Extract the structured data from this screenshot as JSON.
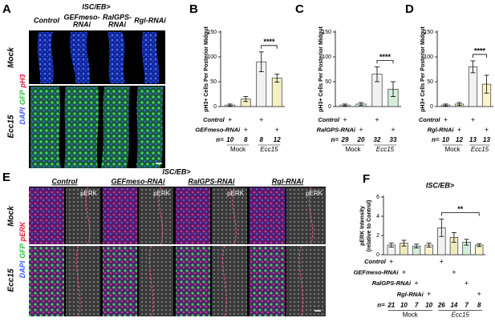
{
  "panel_a": {
    "label": "A",
    "title": "ISC/EB>",
    "columns": [
      [
        "Control"
      ],
      [
        "GEFmeso-",
        "RNAi"
      ],
      [
        "RalGPS-",
        "RNAi"
      ],
      [
        "Rgl-RNAi"
      ]
    ],
    "rows": [
      "Mock",
      "Ecc15"
    ],
    "stains": [
      "DAPI",
      "GFP",
      "pH3"
    ]
  },
  "panel_e": {
    "label": "E",
    "title": "ISC/EB>",
    "columns": [
      {
        "name": "Control",
        "channel": "pERK"
      },
      {
        "name": "GEFmeso-RNAi",
        "channel": "pERK"
      },
      {
        "name": "RalGPS-RNAi",
        "channel": "pERK"
      },
      {
        "name": "Rgl-RNAi",
        "channel": "pERK"
      }
    ],
    "rows": [
      "Mock",
      "Ecc15"
    ],
    "stains": [
      "DAPI",
      "GFP",
      "pERK"
    ]
  },
  "chart_data": [
    {
      "type": "bar",
      "panel": "B",
      "ylabel": [
        "pH3+ Cells Per Posterior Midgut"
      ],
      "ylim": [
        0,
        150
      ],
      "yticks": [
        0,
        50,
        100,
        150
      ],
      "values": [
        3,
        15,
        90,
        57
      ],
      "errors": [
        2,
        5,
        20,
        8
      ],
      "colors": [
        "#f2f2f2",
        "#f4f0c4",
        "#f2f2f2",
        "#f4f0c4"
      ],
      "significance": "****",
      "rows": [
        {
          "label": "Control",
          "marks": [
            "+",
            null,
            "+",
            null
          ]
        },
        {
          "label": "GEFmeso-RNAi",
          "marks": [
            null,
            "+",
            null,
            "+"
          ]
        }
      ],
      "n_label": "n=",
      "n": [
        10,
        8,
        8,
        12
      ],
      "groups": [
        "Mock",
        "Ecc15"
      ]
    },
    {
      "type": "bar",
      "panel": "C",
      "ylabel": [
        "pH3+ Cells Per Posterior Midgut"
      ],
      "ylim": [
        0,
        150
      ],
      "yticks": [
        0,
        50,
        100,
        150
      ],
      "values": [
        3,
        5,
        65,
        35
      ],
      "errors": [
        2,
        3,
        15,
        15
      ],
      "colors": [
        "#f2f2f2",
        "#d4eddc",
        "#f2f2f2",
        "#d4eddc"
      ],
      "significance": "****",
      "rows": [
        {
          "label": "Control",
          "marks": [
            "+",
            null,
            "+",
            null
          ]
        },
        {
          "label": "RalGPS-RNAi",
          "marks": [
            null,
            "+",
            null,
            "+"
          ]
        }
      ],
      "n_label": "n=",
      "n": [
        29,
        20,
        32,
        33
      ],
      "groups": [
        "Mock",
        "Ecc15"
      ]
    },
    {
      "type": "bar",
      "panel": "D",
      "ylabel": [
        "pH3+ Cells Per Posterior Midgut"
      ],
      "ylim": [
        0,
        150
      ],
      "yticks": [
        0,
        50,
        100,
        150
      ],
      "values": [
        3,
        5,
        80,
        45
      ],
      "errors": [
        2,
        3,
        12,
        18
      ],
      "colors": [
        "#f2f2f2",
        "#faf3cc",
        "#f2f2f2",
        "#faf3cc"
      ],
      "significance": "****",
      "rows": [
        {
          "label": "Control",
          "marks": [
            "+",
            null,
            "+",
            null
          ]
        },
        {
          "label": "Rgl-RNAi",
          "marks": [
            null,
            "+",
            null,
            "+"
          ]
        }
      ],
      "n_label": "n=",
      "n": [
        10,
        12,
        13,
        13
      ],
      "groups": [
        "Mock",
        "Ecc15"
      ]
    },
    {
      "type": "bar",
      "panel": "F",
      "title": "ISC/EB>",
      "ylabel": [
        "pERK Intensity",
        "(relative to Control)"
      ],
      "ylim": [
        0,
        6
      ],
      "yticks": [
        0,
        2,
        4,
        6
      ],
      "values": [
        1.0,
        1.2,
        0.9,
        1.0,
        2.8,
        1.8,
        1.3,
        1.0
      ],
      "errors": [
        0.2,
        0.3,
        0.2,
        0.2,
        0.9,
        0.5,
        0.3,
        0.15
      ],
      "colors": [
        "#f2f2f2",
        "#eeeabc",
        "#d4eddc",
        "#faf3cc",
        "#f2f2f2",
        "#eeeabc",
        "#d4eddc",
        "#faf3cc"
      ],
      "significance": "**",
      "rows": [
        {
          "label": "Control",
          "marks": [
            "+",
            null,
            null,
            null,
            "+",
            null,
            null,
            null
          ]
        },
        {
          "label": "GEFmeso-RNAi",
          "marks": [
            null,
            "+",
            null,
            null,
            null,
            "+",
            null,
            null
          ]
        },
        {
          "label": "RalGPS-RNAi",
          "marks": [
            null,
            null,
            "+",
            null,
            null,
            null,
            "+",
            null
          ]
        },
        {
          "label": "Rgl-RNAi",
          "marks": [
            null,
            null,
            null,
            "+",
            null,
            null,
            null,
            "+"
          ]
        }
      ],
      "n_label": "n=",
      "n": [
        21,
        10,
        7,
        10,
        26,
        14,
        7,
        8
      ],
      "groups": [
        "Mock",
        "Ecc15"
      ]
    }
  ]
}
